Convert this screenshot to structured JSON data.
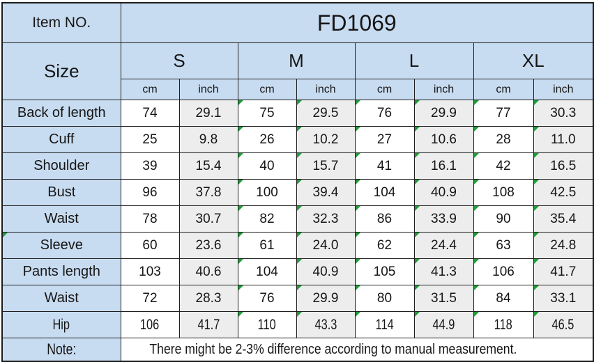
{
  "table": {
    "item_no_label": "Item NO.",
    "item_no_value": "FD1069",
    "size_label": "Size",
    "sizes": [
      "S",
      "M",
      "L",
      "XL"
    ],
    "unit_labels": [
      "cm",
      "inch"
    ],
    "rows": [
      {
        "label": "Back of length",
        "values": [
          "74",
          "29.1",
          "75",
          "29.5",
          "76",
          "29.9",
          "77",
          "30.3"
        ]
      },
      {
        "label": "Cuff",
        "values": [
          "25",
          "9.8",
          "26",
          "10.2",
          "27",
          "10.6",
          "28",
          "11.0"
        ]
      },
      {
        "label": "Shoulder",
        "values": [
          "39",
          "15.4",
          "40",
          "15.7",
          "41",
          "16.1",
          "42",
          "16.5"
        ]
      },
      {
        "label": "Bust",
        "values": [
          "96",
          "37.8",
          "100",
          "39.4",
          "104",
          "40.9",
          "108",
          "42.5"
        ]
      },
      {
        "label": "Waist",
        "values": [
          "78",
          "30.7",
          "82",
          "32.3",
          "86",
          "33.9",
          "90",
          "35.4"
        ]
      },
      {
        "label": "Sleeve",
        "values": [
          "60",
          "23.6",
          "61",
          "24.0",
          "62",
          "24.4",
          "63",
          "24.8"
        ],
        "label_marker": true
      },
      {
        "label": "Pants length",
        "values": [
          "103",
          "40.6",
          "104",
          "40.9",
          "105",
          "41.3",
          "106",
          "41.7"
        ]
      },
      {
        "label": "Waist",
        "values": [
          "72",
          "28.3",
          "76",
          "29.9",
          "80",
          "31.5",
          "84",
          "33.1"
        ]
      },
      {
        "label": "Hip",
        "values": [
          "106",
          "41.7",
          "110",
          "43.3",
          "114",
          "44.9",
          "118",
          "46.5"
        ]
      }
    ],
    "marker_columns": [
      2,
      3,
      4,
      5,
      6,
      7
    ],
    "note_label": "Note:",
    "note_text": "There might be 2-3% difference according to manual measurement."
  },
  "colors": {
    "header_fill": "#c8dcf1",
    "inch_column_fill": "#ededed",
    "cm_column_fill": "#ffffff",
    "border": "#1e1e1e",
    "text": "#161616",
    "error_indicator_green": "#1e9b38"
  }
}
